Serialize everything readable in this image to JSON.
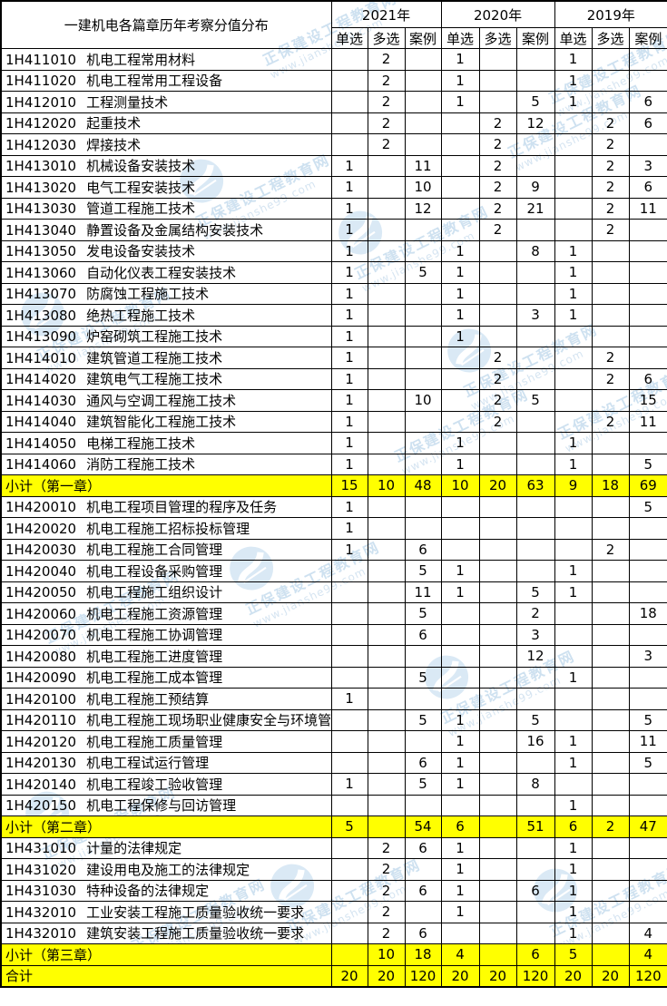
{
  "header": {
    "title": "一建机电各篇章历年考察分值分布",
    "years": [
      "2021年",
      "2020年",
      "2019年"
    ],
    "subcols": [
      "单选",
      "多选",
      "案例"
    ]
  },
  "sections": [
    {
      "rows": [
        {
          "code": "1H411010",
          "name": "机电工程常用材料",
          "values": [
            "",
            "2",
            "",
            "1",
            "",
            "",
            "1",
            "",
            ""
          ]
        },
        {
          "code": "1H411020",
          "name": "机电工程常用工程设备",
          "values": [
            "",
            "2",
            "",
            "1",
            "",
            "",
            "1",
            "",
            ""
          ]
        },
        {
          "code": "1H412010",
          "name": "工程测量技术",
          "values": [
            "",
            "2",
            "",
            "1",
            "",
            "5",
            "1",
            "",
            "6"
          ]
        },
        {
          "code": "1H412020",
          "name": "起重技术",
          "values": [
            "",
            "2",
            "",
            "",
            "2",
            "12",
            "",
            "2",
            "6"
          ]
        },
        {
          "code": "1H412030",
          "name": "焊接技术",
          "values": [
            "",
            "2",
            "",
            "",
            "2",
            "",
            "",
            "2",
            ""
          ]
        },
        {
          "code": "1H413010",
          "name": "机械设备安装技术",
          "values": [
            "1",
            "",
            "11",
            "",
            "2",
            "",
            "",
            "2",
            "3"
          ]
        },
        {
          "code": "1H413020",
          "name": "电气工程安装技术",
          "values": [
            "1",
            "",
            "10",
            "",
            "2",
            "9",
            "",
            "2",
            "6"
          ]
        },
        {
          "code": "1H413030",
          "name": "管道工程施工技术",
          "values": [
            "1",
            "",
            "12",
            "",
            "2",
            "21",
            "",
            "2",
            "11"
          ]
        },
        {
          "code": "1H413040",
          "name": "静置设备及金属结构安装技术",
          "values": [
            "1",
            "",
            "",
            "",
            "2",
            "",
            "",
            "2",
            ""
          ]
        },
        {
          "code": "1H413050",
          "name": "发电设备安装技术",
          "values": [
            "1",
            "",
            "",
            "1",
            "",
            "8",
            "1",
            "",
            ""
          ]
        },
        {
          "code": "1H413060",
          "name": "自动化仪表工程安装技术",
          "values": [
            "1",
            "",
            "5",
            "1",
            "",
            "",
            "1",
            "",
            ""
          ]
        },
        {
          "code": "1H413070",
          "name": "防腐蚀工程施工技术",
          "values": [
            "1",
            "",
            "",
            "1",
            "",
            "",
            "1",
            "",
            ""
          ]
        },
        {
          "code": "1H413080",
          "name": "绝热工程施工技术",
          "values": [
            "1",
            "",
            "",
            "1",
            "",
            "3",
            "1",
            "",
            ""
          ]
        },
        {
          "code": "1H413090",
          "name": "炉窑砌筑工程施工技术",
          "values": [
            "1",
            "",
            "",
            "1",
            "",
            "",
            "",
            "",
            ""
          ]
        },
        {
          "code": "1H414010",
          "name": "建筑管道工程施工技术",
          "values": [
            "1",
            "",
            "",
            "",
            "2",
            "",
            "",
            "2",
            ""
          ]
        },
        {
          "code": "1H414020",
          "name": "建筑电气工程施工技术",
          "values": [
            "1",
            "",
            "",
            "",
            "2",
            "",
            "",
            "2",
            "6"
          ]
        },
        {
          "code": "1H414030",
          "name": "通风与空调工程施工技术",
          "values": [
            "1",
            "",
            "10",
            "",
            "2",
            "5",
            "",
            "",
            "15"
          ]
        },
        {
          "code": "1H414040",
          "name": "建筑智能化工程施工技术",
          "values": [
            "1",
            "",
            "",
            "",
            "2",
            "",
            "",
            "2",
            "11"
          ]
        },
        {
          "code": "1H414050",
          "name": "电梯工程施工技术",
          "values": [
            "1",
            "",
            "",
            "1",
            "",
            "",
            "1",
            "",
            ""
          ]
        },
        {
          "code": "1H414060",
          "name": "消防工程施工技术",
          "values": [
            "1",
            "",
            "",
            "1",
            "",
            "",
            "1",
            "",
            "5"
          ]
        }
      ],
      "subtotal": {
        "label": "小计（第一章）",
        "values": [
          "15",
          "10",
          "48",
          "10",
          "20",
          "63",
          "9",
          "18",
          "69"
        ]
      }
    },
    {
      "rows": [
        {
          "code": "1H420010",
          "name": "机电工程项目管理的程序及任务",
          "values": [
            "1",
            "",
            "",
            "",
            "",
            "",
            "",
            "",
            "5"
          ]
        },
        {
          "code": "1H420020",
          "name": "机电工程施工招标投标管理",
          "values": [
            "1",
            "",
            "",
            "",
            "",
            "",
            "",
            "",
            ""
          ]
        },
        {
          "code": "1H420030",
          "name": "机电工程施工合同管理",
          "values": [
            "1",
            "",
            "6",
            "",
            "",
            "",
            "",
            "2",
            ""
          ]
        },
        {
          "code": "1H420040",
          "name": "机电工程设备采购管理",
          "values": [
            "",
            "",
            "5",
            "1",
            "",
            "",
            "1",
            "",
            ""
          ]
        },
        {
          "code": "1H420050",
          "name": "机电工程施工组织设计",
          "values": [
            "",
            "",
            "11",
            "1",
            "",
            "5",
            "1",
            "",
            ""
          ]
        },
        {
          "code": "1H420060",
          "name": "机电工程施工资源管理",
          "values": [
            "",
            "",
            "5",
            "",
            "",
            "2",
            "",
            "",
            "18"
          ]
        },
        {
          "code": "1H420070",
          "name": "机电工程施工协调管理",
          "values": [
            "",
            "",
            "6",
            "",
            "",
            "3",
            "",
            "",
            ""
          ]
        },
        {
          "code": "1H420080",
          "name": "机电工程施工进度管理",
          "values": [
            "",
            "",
            "",
            "",
            "",
            "12",
            "",
            "",
            "3"
          ]
        },
        {
          "code": "1H420090",
          "name": "机电工程施工成本管理",
          "values": [
            "",
            "",
            "5",
            "",
            "",
            "",
            "1",
            "",
            ""
          ]
        },
        {
          "code": "1H420100",
          "name": "机电工程施工预结算",
          "values": [
            "1",
            "",
            "",
            "",
            "",
            "",
            "",
            "",
            ""
          ]
        },
        {
          "code": "1H420110",
          "name": "机电工程施工现场职业健康安全与环境管理",
          "values": [
            "",
            "",
            "5",
            "1",
            "",
            "5",
            "",
            "",
            "5"
          ]
        },
        {
          "code": "1H420120",
          "name": "机电工程施工质量管理",
          "values": [
            "",
            "",
            "",
            "1",
            "",
            "16",
            "1",
            "",
            "11"
          ]
        },
        {
          "code": "1H420130",
          "name": "机电工程试运行管理",
          "values": [
            "",
            "",
            "6",
            "1",
            "",
            "",
            "1",
            "",
            "5"
          ]
        },
        {
          "code": "1H420140",
          "name": "机电工程竣工验收管理",
          "values": [
            "1",
            "",
            "5",
            "1",
            "",
            "8",
            "",
            "",
            ""
          ]
        },
        {
          "code": "1H420150",
          "name": "机电工程保修与回访管理",
          "values": [
            "",
            "",
            "",
            "",
            "",
            "",
            "1",
            "",
            ""
          ]
        }
      ],
      "subtotal": {
        "label": "小计（第二章）",
        "values": [
          "5",
          "",
          "54",
          "6",
          "",
          "51",
          "6",
          "2",
          "47"
        ]
      }
    },
    {
      "rows": [
        {
          "code": "1H431010",
          "name": "计量的法律规定",
          "values": [
            "",
            "2",
            "6",
            "1",
            "",
            "",
            "1",
            "",
            ""
          ]
        },
        {
          "code": "1H431020",
          "name": "建设用电及施工的法律规定",
          "values": [
            "",
            "2",
            "",
            "1",
            "",
            "",
            "1",
            "",
            ""
          ]
        },
        {
          "code": "1H431030",
          "name": "特种设备的法律规定",
          "values": [
            "",
            "2",
            "6",
            "1",
            "",
            "6",
            "1",
            "",
            ""
          ]
        },
        {
          "code": "1H432010",
          "name": "工业安装工程施工质量验收统一要求",
          "values": [
            "",
            "2",
            "",
            "1",
            "",
            "",
            "1",
            "",
            ""
          ]
        },
        {
          "code": "1H432010",
          "name": "建筑安装工程施工质量验收统一要求",
          "values": [
            "",
            "2",
            "6",
            "",
            "",
            "",
            "1",
            "",
            "4"
          ]
        }
      ],
      "subtotal": {
        "label": "小计（第三章）",
        "values": [
          "",
          "10",
          "18",
          "4",
          "",
          "6",
          "5",
          "",
          "4"
        ]
      }
    }
  ],
  "total": {
    "label": "合计",
    "values": [
      "20",
      "20",
      "120",
      "20",
      "20",
      "120",
      "20",
      "20",
      "120"
    ]
  },
  "watermark": {
    "site_name": "正保建设工程教育网",
    "site_url": "www.jianshe99.com"
  },
  "colors": {
    "subtotal_highlight": "#FFFF00",
    "watermark_blue": "#a7c9e4",
    "border": "#000000"
  }
}
